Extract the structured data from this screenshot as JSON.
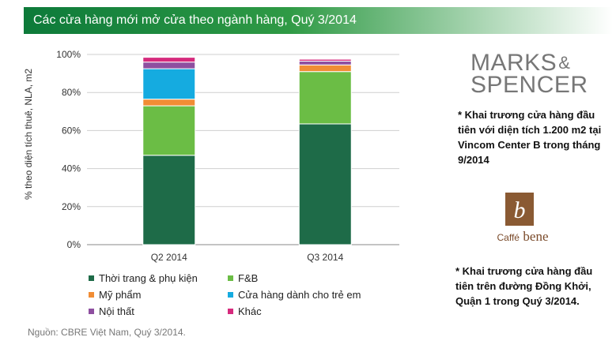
{
  "title": "Các cửa hàng mới mở cửa theo ngành hàng, Quý 3/2014",
  "source": "Nguồn: CBRE Việt Nam, Quý 3/2014.",
  "chart_data": {
    "type": "bar",
    "stacked": true,
    "categories": [
      "Q2 2014",
      "Q3 2014"
    ],
    "series": [
      {
        "name": "Thời trang & phụ kiện",
        "color": "#1e6b48",
        "values": [
          47,
          63.5
        ]
      },
      {
        "name": "F&B",
        "color": "#6bbd45",
        "values": [
          26,
          27.5
        ]
      },
      {
        "name": "Mỹ phẩm",
        "color": "#f18d35",
        "values": [
          3.5,
          3.5
        ]
      },
      {
        "name": "Cửa hàng dành cho trẻ em",
        "color": "#15abe0",
        "values": [
          16,
          0
        ]
      },
      {
        "name": "Nội thất",
        "color": "#8e4fa0",
        "values": [
          3.5,
          2
        ]
      },
      {
        "name": "Khác",
        "color": "#d62a7d",
        "values": [
          2.5,
          1
        ]
      }
    ],
    "ylabel": "% theo diện tích thuê, NLA, m2",
    "xlabel": "",
    "ylim": [
      0,
      100
    ],
    "yticks": [
      "0%",
      "20%",
      "40%",
      "60%",
      "80%",
      "100%"
    ],
    "grid": true,
    "legend": "bottom"
  },
  "brands": {
    "ms_line1": "MARKS",
    "ms_amp": "&",
    "ms_line2": "SPENCER",
    "ms_note": "* Khai trương cửa hàng đầu tiên với diện tích 1.200 m2 tại Vincom Center B trong tháng 9/2014",
    "cb_text_a": "Caffé",
    "cb_text_b": "bene",
    "cb_note": "* Khai trương cửa hàng đầu tiên trên đường Đồng Khởi, Quận 1 trong Quý 3/2014."
  }
}
